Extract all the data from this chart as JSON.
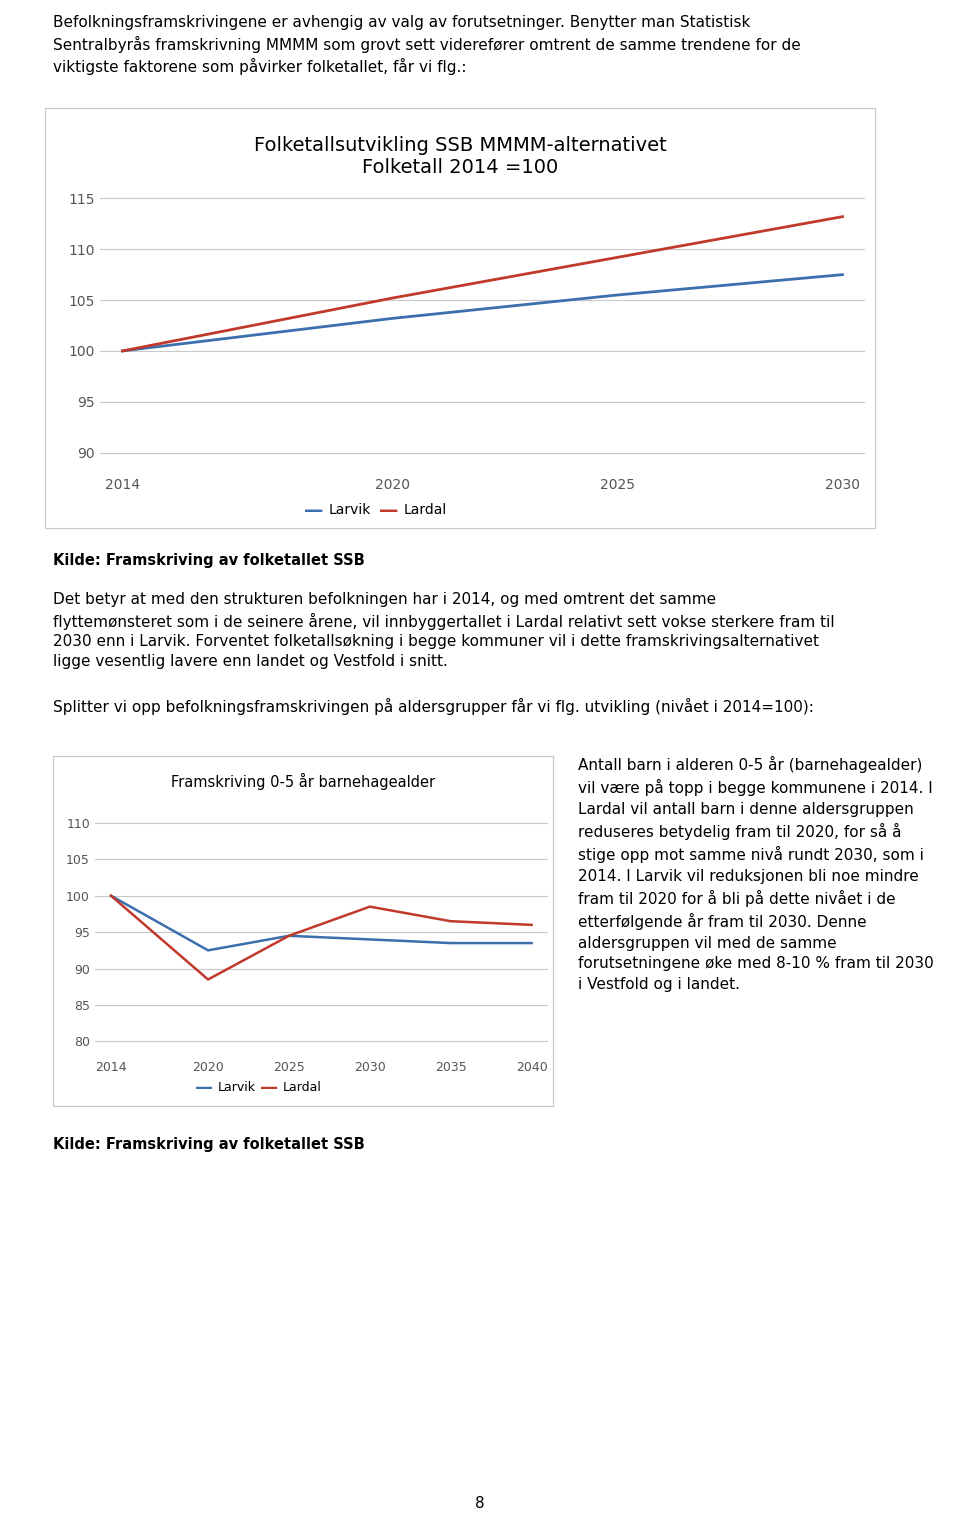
{
  "page_background": "#ffffff",
  "intro_text_lines": [
    "Befolkningsframskrivingene er avhengig av valg av forutsetninger. Benytter man Statistisk",
    "Sentralbyrås framskrivning MMMM som grovt sett viderefører omtrent de samme trendene for de",
    "viktigste faktorene som påvirker folketallet, får vi flg.:"
  ],
  "chart1": {
    "title_line1": "Folketallsutvikling SSB MMMM-alternativet",
    "title_line2": "Folketall 2014 =100",
    "years": [
      2014,
      2020,
      2025,
      2030
    ],
    "larvik": [
      100.0,
      103.2,
      105.5,
      107.5
    ],
    "lardal": [
      100.0,
      105.2,
      109.2,
      113.2
    ],
    "ylim": [
      88,
      117
    ],
    "yticks": [
      90,
      95,
      100,
      105,
      110,
      115
    ],
    "xlim": [
      2013.5,
      2030.5
    ],
    "larvik_color": "#3c6fad",
    "lardal_color": "#c0392b",
    "legend_larvik": "Larvik",
    "legend_lardal": "Lardal"
  },
  "source1_bold": "Kilde: Framskriving av folketallet SSB",
  "middle_text_lines": [
    "Det betyr at med den strukturen befolkningen har i 2014, og med omtrent det samme",
    "flyttemønsteret som i de seinere årene, vil innbyggertallet i Lardal relativt sett vokse sterkere fram til",
    "2030 enn i Larvik. Forventet folketallsøkning i begge kommuner vil i dette framskrivingsalternativet",
    "ligge vesentlig lavere enn landet og Vestfold i snitt."
  ],
  "splitter_text": "Splitter vi opp befolkningsframskrivingen på aldersgrupper får vi flg. utvikling (nivået i 2014=100):",
  "chart2": {
    "title": "Framskriving 0-5 år barnehagealder",
    "years": [
      2014,
      2020,
      2025,
      2030,
      2035,
      2040
    ],
    "larvik": [
      100.0,
      92.5,
      94.5,
      94.0,
      93.5,
      93.5
    ],
    "lardal": [
      100.0,
      88.5,
      94.5,
      98.5,
      96.5,
      96.0
    ],
    "ylim": [
      78,
      113
    ],
    "yticks": [
      80,
      85,
      90,
      95,
      100,
      105,
      110
    ],
    "xlim": [
      2013.0,
      2041.0
    ],
    "larvik_color": "#3c6fad",
    "lardal_color": "#c0392b",
    "legend_larvik": "Larvik",
    "legend_lardal": "Lardal"
  },
  "right_text_lines": [
    "Antall barn i alderen 0-5 år (barnehagealder)",
    "vil være på topp i begge kommunene i 2014. I",
    "Lardal vil antall barn i denne aldersgruppen",
    "reduseres betydelig fram til 2020, for så å",
    "stige opp mot samme nivå rundt 2030, som i",
    "2014. I Larvik vil reduksjonen bli noe mindre",
    "fram til 2020 for å bli på dette nivået i de",
    "etterfølgende år fram til 2030. Denne",
    "aldersgruppen vil med de samme",
    "forutsetningene øke med 8-10 % fram til 2030",
    "i Vestfold og i landet."
  ],
  "source2_bold": "Kilde: Framskriving av folketallet SSB",
  "page_number": "8",
  "chart_border_color": "#c8c8c8",
  "grid_color": "#c8c8c8",
  "text_color": "#000000"
}
